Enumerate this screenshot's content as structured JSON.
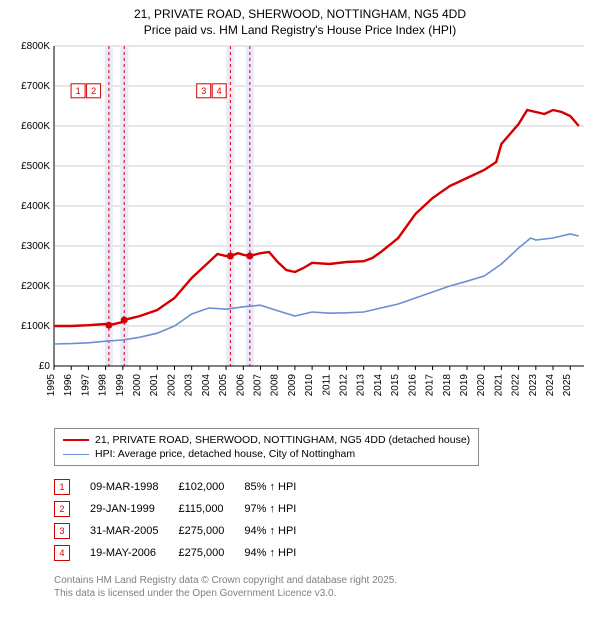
{
  "title_line1": "21, PRIVATE ROAD, SHERWOOD, NOTTINGHAM, NG5 4DD",
  "title_line2": "Price paid vs. HM Land Registry's House Price Index (HPI)",
  "chart": {
    "type": "line",
    "background_color": "#ffffff",
    "grid_color": "#cccccc",
    "axis_color": "#000000",
    "xlim": [
      1995,
      2025.8
    ],
    "ylim": [
      0,
      800000
    ],
    "ytick_step": 100000,
    "ytick_labels": [
      "£0",
      "£100K",
      "£200K",
      "£300K",
      "£400K",
      "£500K",
      "£600K",
      "£700K",
      "£800K"
    ],
    "xtick_step": 1,
    "xtick_labels": [
      "1995",
      "1996",
      "1997",
      "1998",
      "1999",
      "2000",
      "2001",
      "2002",
      "2003",
      "2004",
      "2005",
      "2006",
      "2007",
      "2008",
      "2009",
      "2010",
      "2011",
      "2012",
      "2013",
      "2014",
      "2015",
      "2016",
      "2017",
      "2018",
      "2019",
      "2020",
      "2021",
      "2022",
      "2023",
      "2024",
      "2025"
    ],
    "label_fontsize": 10,
    "vbands": [
      {
        "x": 1998.19,
        "color": "#e9e9fb",
        "line_color": "#d40000"
      },
      {
        "x": 1999.08,
        "color": "#e9e9fb",
        "line_color": "#d40000"
      },
      {
        "x": 2005.25,
        "color": "#e9e9fb",
        "line_color": "#d40000"
      },
      {
        "x": 2006.38,
        "color": "#e9e9fb",
        "line_color": "#d40000"
      }
    ],
    "series_a": {
      "color": "#d40000",
      "width": 2.4,
      "points": [
        [
          1995,
          100000
        ],
        [
          1996,
          100000
        ],
        [
          1997,
          102000
        ],
        [
          1998,
          105000
        ],
        [
          1998.19,
          102000
        ],
        [
          1999,
          110000
        ],
        [
          1999.08,
          115000
        ],
        [
          2000,
          125000
        ],
        [
          2001,
          140000
        ],
        [
          2002,
          170000
        ],
        [
          2003,
          220000
        ],
        [
          2004,
          260000
        ],
        [
          2004.5,
          280000
        ],
        [
          2005,
          275000
        ],
        [
          2005.25,
          275000
        ],
        [
          2005.7,
          282000
        ],
        [
          2006,
          278000
        ],
        [
          2006.38,
          275000
        ],
        [
          2006.8,
          280000
        ],
        [
          2007,
          282000
        ],
        [
          2007.5,
          285000
        ],
        [
          2008,
          260000
        ],
        [
          2008.5,
          240000
        ],
        [
          2009,
          235000
        ],
        [
          2009.5,
          245000
        ],
        [
          2010,
          258000
        ],
        [
          2011,
          255000
        ],
        [
          2012,
          260000
        ],
        [
          2013,
          262000
        ],
        [
          2013.5,
          270000
        ],
        [
          2014,
          285000
        ],
        [
          2015,
          320000
        ],
        [
          2016,
          380000
        ],
        [
          2016.5,
          400000
        ],
        [
          2017,
          420000
        ],
        [
          2018,
          450000
        ],
        [
          2019,
          470000
        ],
        [
          2020,
          490000
        ],
        [
          2020.7,
          510000
        ],
        [
          2021,
          555000
        ],
        [
          2021.5,
          580000
        ],
        [
          2022,
          605000
        ],
        [
          2022.5,
          640000
        ],
        [
          2023,
          635000
        ],
        [
          2023.5,
          630000
        ],
        [
          2024,
          640000
        ],
        [
          2024.5,
          635000
        ],
        [
          2025,
          625000
        ],
        [
          2025.5,
          600000
        ]
      ]
    },
    "series_b": {
      "color": "#6b8fd4",
      "width": 1.6,
      "points": [
        [
          1995,
          55000
        ],
        [
          1996,
          56000
        ],
        [
          1997,
          58000
        ],
        [
          1998,
          62000
        ],
        [
          1999,
          65000
        ],
        [
          2000,
          72000
        ],
        [
          2001,
          82000
        ],
        [
          2002,
          100000
        ],
        [
          2003,
          130000
        ],
        [
          2004,
          145000
        ],
        [
          2005,
          142000
        ],
        [
          2006,
          148000
        ],
        [
          2007,
          152000
        ],
        [
          2008,
          138000
        ],
        [
          2009,
          125000
        ],
        [
          2010,
          135000
        ],
        [
          2011,
          132000
        ],
        [
          2012,
          133000
        ],
        [
          2013,
          135000
        ],
        [
          2014,
          145000
        ],
        [
          2015,
          155000
        ],
        [
          2016,
          170000
        ],
        [
          2017,
          185000
        ],
        [
          2018,
          200000
        ],
        [
          2019,
          212000
        ],
        [
          2020,
          225000
        ],
        [
          2021,
          255000
        ],
        [
          2022,
          295000
        ],
        [
          2022.7,
          320000
        ],
        [
          2023,
          315000
        ],
        [
          2024,
          320000
        ],
        [
          2025,
          330000
        ],
        [
          2025.5,
          325000
        ]
      ]
    },
    "sale_markers": [
      {
        "x": 1998.19,
        "y": 102000,
        "label": "1",
        "legend_x": 1996.4,
        "legend_y": 688000
      },
      {
        "x": 1999.08,
        "y": 115000,
        "label": "2",
        "legend_x": 1997.3,
        "legend_y": 688000
      },
      {
        "x": 2005.25,
        "y": 275000,
        "label": "3",
        "legend_x": 2003.7,
        "legend_y": 688000
      },
      {
        "x": 2006.38,
        "y": 275000,
        "label": "4",
        "legend_x": 2004.6,
        "legend_y": 688000
      }
    ]
  },
  "legend": {
    "a": "21, PRIVATE ROAD, SHERWOOD, NOTTINGHAM, NG5 4DD (detached house)",
    "b": "HPI: Average price, detached house, City of Nottingham"
  },
  "sales": [
    {
      "n": "1",
      "date": "09-MAR-1998",
      "price": "£102,000",
      "hpi": "85% ↑ HPI"
    },
    {
      "n": "2",
      "date": "29-JAN-1999",
      "price": "£115,000",
      "hpi": "97% ↑ HPI"
    },
    {
      "n": "3",
      "date": "31-MAR-2005",
      "price": "£275,000",
      "hpi": "94% ↑ HPI"
    },
    {
      "n": "4",
      "date": "19-MAY-2006",
      "price": "£275,000",
      "hpi": "94% ↑ HPI"
    }
  ],
  "footnote_line1": "Contains HM Land Registry data © Crown copyright and database right 2025.",
  "footnote_line2": "This data is licensed under the Open Government Licence v3.0."
}
